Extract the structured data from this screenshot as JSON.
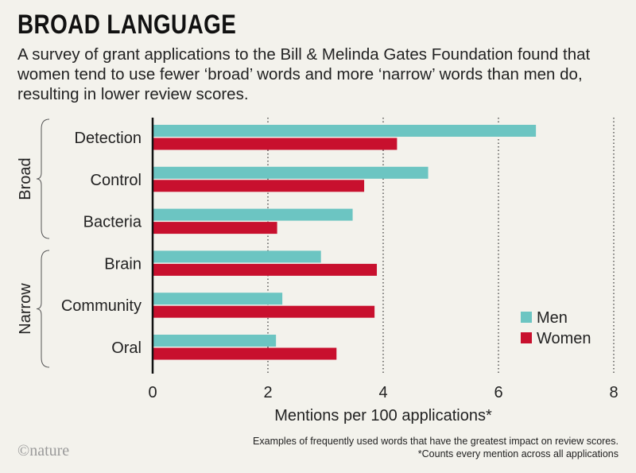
{
  "header": {
    "title": "BROAD LANGUAGE",
    "subtitle": "A survey of grant applications to the Bill & Melinda Gates Foundation found that women tend to use fewer ‘broad’ words and more ‘narrow’ words than men do, resulting in lower review scores."
  },
  "footer": {
    "logo": "©nature",
    "note1": "Examples of frequently used words that have the greatest impact on review scores.",
    "note2": "*Counts every mention across all applications"
  },
  "colors": {
    "men": "#6cc5c2",
    "women": "#c8102e",
    "background": "#f3f2ec"
  },
  "chart_data": {
    "type": "bar",
    "orientation": "horizontal",
    "categories": [
      "Detection",
      "Control",
      "Bacteria",
      "Brain",
      "Community",
      "Oral"
    ],
    "groups": [
      {
        "label": "Broad",
        "categories": [
          "Detection",
          "Control",
          "Bacteria"
        ]
      },
      {
        "label": "Narrow",
        "categories": [
          "Brain",
          "Community",
          "Oral"
        ]
      }
    ],
    "series": [
      {
        "name": "Men",
        "values": [
          6.65,
          4.78,
          3.47,
          2.92,
          2.25,
          2.14
        ]
      },
      {
        "name": "Women",
        "values": [
          4.24,
          3.67,
          2.16,
          3.89,
          3.85,
          3.19
        ]
      }
    ],
    "xlabel": "Mentions per 100 applications*",
    "xlim": [
      0,
      8
    ],
    "xticks": [
      "0",
      "2",
      "4",
      "6",
      "8"
    ],
    "grid": "vertical dotted",
    "legend_position": "bottom-right"
  }
}
